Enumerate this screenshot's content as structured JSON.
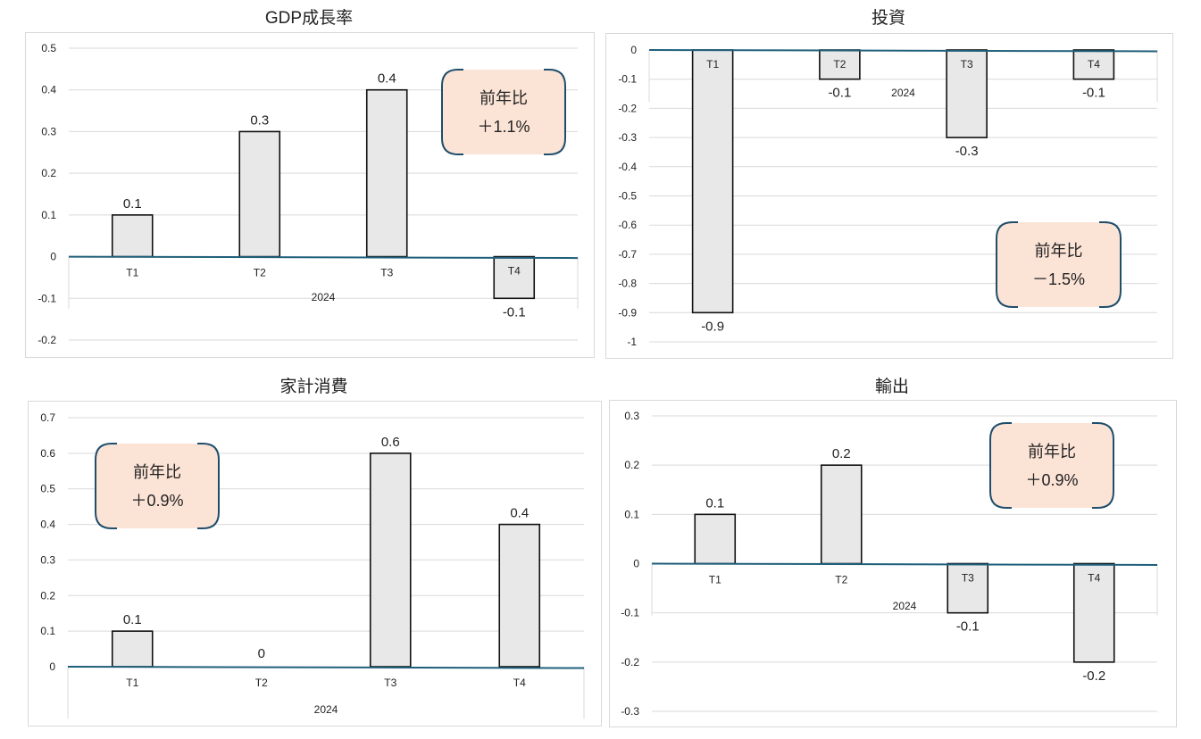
{
  "chart_data": [
    {
      "type": "bar",
      "title": "GDP成長率",
      "year_label": "2024",
      "categories": [
        "T1",
        "T2",
        "T3",
        "T4"
      ],
      "values": [
        0.1,
        0.3,
        0.4,
        -0.1
      ],
      "ylim": [
        -0.2,
        0.5
      ],
      "yticks": [
        "0.5",
        "0.4",
        "0.3",
        "0.2",
        "0.1",
        "0",
        "-0.1",
        "-0.2"
      ],
      "data_labels": [
        "0.1",
        "0.3",
        "0.4",
        "-0.1"
      ],
      "annotation": {
        "line1": "前年比",
        "line2": "＋1.1%"
      },
      "grid": true
    },
    {
      "type": "bar",
      "title": "投資",
      "year_label": "2024",
      "categories": [
        "T1",
        "T2",
        "T3",
        "T4"
      ],
      "values": [
        -0.9,
        -0.1,
        -0.3,
        -0.1
      ],
      "ylim": [
        -1,
        0
      ],
      "yticks": [
        "0",
        "-0.1",
        "-0.2",
        "-0.3",
        "-0.4",
        "-0.5",
        "-0.6",
        "-0.7",
        "-0.8",
        "-0.9",
        "-1"
      ],
      "data_labels": [
        "-0.9",
        "-0.1",
        "-0.3",
        "-0.1"
      ],
      "annotation": {
        "line1": "前年比",
        "line2": "－1.5%"
      },
      "grid": true
    },
    {
      "type": "bar",
      "title": "家計消費",
      "year_label": "2024",
      "categories": [
        "T1",
        "T2",
        "T3",
        "T4"
      ],
      "values": [
        0.1,
        0,
        0.6,
        0.4
      ],
      "ylim": [
        0,
        0.7
      ],
      "yticks": [
        "0.7",
        "0.6",
        "0.5",
        "0.4",
        "0.3",
        "0.2",
        "0.1",
        "0"
      ],
      "data_labels": [
        "0.1",
        "0",
        "0.6",
        "0.4"
      ],
      "annotation": {
        "line1": "前年比",
        "line2": "＋0.9%"
      },
      "grid": true
    },
    {
      "type": "bar",
      "title": "輸出",
      "year_label": "2024",
      "categories": [
        "T1",
        "T2",
        "T3",
        "T4"
      ],
      "values": [
        0.1,
        0.2,
        -0.1,
        -0.2
      ],
      "ylim": [
        -0.3,
        0.3
      ],
      "yticks": [
        "0.3",
        "0.2",
        "0.1",
        "0",
        "-0.1",
        "-0.2",
        "-0.3"
      ],
      "data_labels": [
        "0.1",
        "0.2",
        "-0.1",
        "-0.2"
      ],
      "annotation": {
        "line1": "前年比",
        "line2": "＋0.9%"
      },
      "grid": true
    }
  ],
  "colors": {
    "bar_fill": "#e8e8e8",
    "bar_stroke": "#111111",
    "axis_line": "#1f5f7a",
    "grid": "#d9d9d9",
    "badge_fill": "#fbe3d6",
    "badge_border": "#1f4e6b"
  }
}
